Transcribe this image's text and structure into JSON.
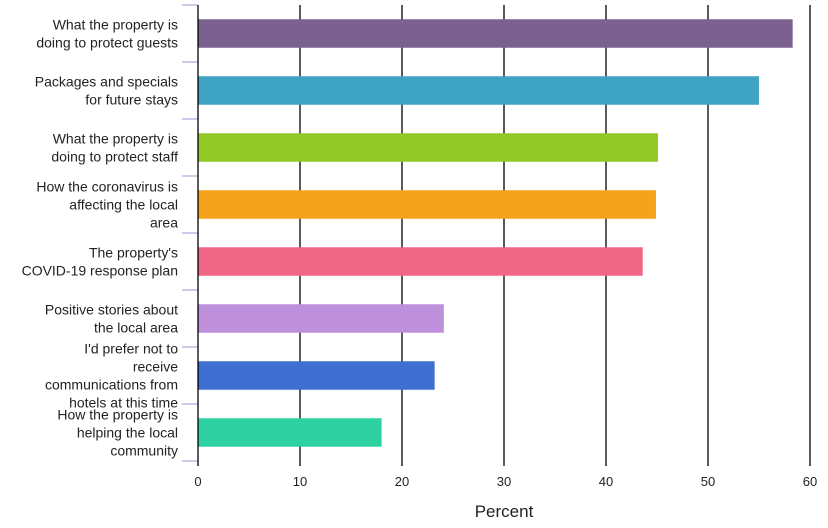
{
  "chart_data": {
    "type": "bar",
    "orientation": "horizontal",
    "title": "",
    "xlabel": "Percent",
    "ylabel": "",
    "xlim": [
      0,
      60
    ],
    "xticks": [
      0,
      10,
      20,
      30,
      40,
      50,
      60
    ],
    "grid": "vertical",
    "legend": "none",
    "categories": [
      [
        "What the property is",
        "doing to protect guests"
      ],
      [
        "Packages and specials",
        "for future stays"
      ],
      [
        "What the property is",
        "doing to protect staff"
      ],
      [
        "How the coronavirus is",
        "affecting the local",
        "area"
      ],
      [
        "The property's",
        "COVID-19 response plan"
      ],
      [
        "Positive stories about",
        "the local area"
      ],
      [
        "I'd prefer not to",
        "receive",
        "communications from",
        "hotels at this time"
      ],
      [
        "How the property is",
        "helping the local",
        "community"
      ]
    ],
    "values": [
      58.3,
      55.0,
      45.1,
      44.9,
      43.6,
      24.1,
      23.2,
      18.0
    ],
    "colors": [
      "#7b6190",
      "#3fa4c4",
      "#93c926",
      "#f5a31d",
      "#f06686",
      "#be90dc",
      "#3f6fd0",
      "#2ed1a2"
    ]
  }
}
